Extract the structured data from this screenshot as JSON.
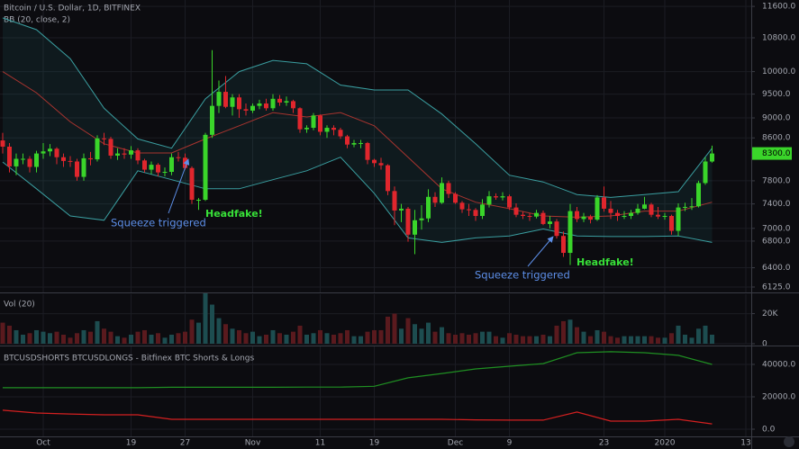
{
  "chart_data": [
    {
      "type": "candlestick",
      "title": "Bitcoin / U.S. Dollar, 1D, BITFINEX",
      "subtitle": "BB (20, close, 2)",
      "log_scale": true,
      "up_color": "#3ad52a",
      "down_color": "#e0262d",
      "xlim": [
        -0.4,
        110.8
      ],
      "ylim": [
        6050,
        11770
      ],
      "yticks": [
        {
          "value": 6125,
          "label": "6125.0"
        },
        {
          "value": 6400,
          "label": "6400.0"
        },
        {
          "value": 6800,
          "label": "6800.0"
        },
        {
          "value": 7000,
          "label": "7000.0"
        },
        {
          "value": 7400,
          "label": "7400.0"
        },
        {
          "value": 7800,
          "label": "7800.0"
        },
        {
          "value": 8600,
          "label": "8600.0"
        },
        {
          "value": 9000,
          "label": "9000.0"
        },
        {
          "value": 9500,
          "label": "9500.0"
        },
        {
          "value": 10000,
          "label": "10000.0"
        },
        {
          "value": 10800,
          "label": "10800.0"
        },
        {
          "value": 11600,
          "label": "11600.0"
        }
      ],
      "x": [
        0,
        1,
        2,
        3,
        4,
        5,
        6,
        7,
        8,
        9,
        10,
        11,
        12,
        13,
        14,
        15,
        16,
        17,
        18,
        19,
        20,
        21,
        22,
        23,
        24,
        25,
        26,
        27,
        28,
        29,
        30,
        31,
        32,
        33,
        34,
        35,
        36,
        37,
        38,
        39,
        40,
        41,
        42,
        43,
        44,
        45,
        46,
        47,
        48,
        49,
        50,
        51,
        52,
        53,
        54,
        55,
        56,
        57,
        58,
        59,
        60,
        61,
        62,
        63,
        64,
        65,
        66,
        67,
        68,
        69,
        70,
        71,
        72,
        73,
        74,
        75,
        76,
        77,
        78,
        79,
        80,
        81,
        82,
        83,
        84,
        85,
        86,
        87,
        88,
        89,
        90,
        91,
        92,
        93,
        94,
        95,
        96,
        97,
        98,
        99,
        100,
        101,
        102,
        103,
        104,
        105
      ],
      "open": [
        8550,
        8430,
        8060,
        8200,
        8200,
        8050,
        8300,
        8340,
        8390,
        8230,
        8160,
        8150,
        7870,
        8210,
        8190,
        8590,
        8580,
        8260,
        8300,
        8280,
        8360,
        8170,
        8000,
        8090,
        7950,
        7960,
        8230,
        8220,
        8030,
        7470,
        7470,
        8660,
        9250,
        9550,
        9230,
        9430,
        9180,
        9150,
        9250,
        9300,
        9200,
        9400,
        9320,
        9350,
        9200,
        8770,
        8800,
        9050,
        8720,
        8800,
        8760,
        8630,
        8470,
        8500,
        8500,
        8180,
        8120,
        8080,
        7620,
        7290,
        7320,
        6900,
        7130,
        7160,
        7520,
        7420,
        7760,
        7570,
        7420,
        7310,
        7300,
        7200,
        7390,
        7530,
        7510,
        7530,
        7340,
        7220,
        7200,
        7190,
        7250,
        7070,
        7110,
        6880,
        6620,
        7280,
        7150,
        7190,
        7140,
        7510,
        7320,
        7250,
        7200,
        7200,
        7250,
        7320,
        7390,
        7220,
        7190,
        7200,
        6960,
        7340,
        7350,
        7360,
        7760,
        8150
      ],
      "high": [
        8700,
        8500,
        8300,
        8300,
        8250,
        8350,
        8500,
        8480,
        8420,
        8300,
        8250,
        8200,
        8300,
        8330,
        8650,
        8700,
        8620,
        8400,
        8400,
        8440,
        8400,
        8200,
        8150,
        8120,
        8040,
        8300,
        8330,
        8300,
        8060,
        7500,
        8700,
        10500,
        9800,
        9900,
        9500,
        9500,
        9300,
        9300,
        9380,
        9400,
        9500,
        9480,
        9450,
        9380,
        9220,
        8850,
        9100,
        9070,
        8850,
        8850,
        8800,
        8660,
        8560,
        8560,
        8520,
        8200,
        8220,
        8100,
        7700,
        7400,
        7350,
        7300,
        7380,
        7650,
        7600,
        7860,
        7800,
        7600,
        7450,
        7400,
        7330,
        7480,
        7620,
        7580,
        7600,
        7560,
        7410,
        7270,
        7250,
        7300,
        7290,
        7200,
        7150,
        6950,
        7400,
        7350,
        7250,
        7220,
        7550,
        7700,
        7450,
        7300,
        7280,
        7300,
        7400,
        7520,
        7420,
        7350,
        7250,
        7220,
        7410,
        7420,
        7500,
        7800,
        8230,
        8450
      ],
      "low": [
        8300,
        7950,
        7900,
        8100,
        7950,
        7950,
        8200,
        8250,
        8100,
        8050,
        8050,
        7800,
        7800,
        8080,
        8150,
        8460,
        8200,
        8180,
        8200,
        8200,
        8100,
        7950,
        7920,
        7880,
        7880,
        7900,
        8150,
        8000,
        7400,
        7300,
        7450,
        8600,
        9100,
        9200,
        9050,
        9000,
        9050,
        9100,
        9180,
        9150,
        9150,
        9250,
        9250,
        9100,
        8700,
        8700,
        8750,
        8650,
        8600,
        8650,
        8580,
        8400,
        8420,
        8400,
        8100,
        8050,
        8000,
        7550,
        7050,
        7100,
        6790,
        6600,
        6980,
        7100,
        7350,
        7400,
        7500,
        7400,
        7250,
        7200,
        7120,
        7150,
        7340,
        7470,
        7460,
        7300,
        7180,
        7150,
        7120,
        7160,
        7050,
        7000,
        6840,
        6560,
        6440,
        7100,
        7100,
        7080,
        7120,
        7270,
        7150,
        7120,
        7150,
        7150,
        7220,
        7310,
        7180,
        7150,
        7140,
        6900,
        6880,
        7280,
        7300,
        7340,
        7730,
        8130
      ],
      "close": [
        8430,
        8060,
        8200,
        8200,
        8050,
        8300,
        8340,
        8390,
        8230,
        8160,
        8150,
        7870,
        8210,
        8190,
        8590,
        8580,
        8260,
        8300,
        8280,
        8360,
        8170,
        8000,
        8090,
        7950,
        7960,
        8230,
        8220,
        8030,
        7470,
        7470,
        8660,
        9250,
        9550,
        9230,
        9430,
        9180,
        9150,
        9250,
        9300,
        9200,
        9400,
        9320,
        9350,
        9200,
        8770,
        8800,
        9050,
        8720,
        8800,
        8760,
        8630,
        8470,
        8500,
        8500,
        8180,
        8120,
        8080,
        7620,
        7290,
        7320,
        6900,
        7130,
        7160,
        7520,
        7420,
        7760,
        7570,
        7420,
        7310,
        7300,
        7200,
        7390,
        7530,
        7510,
        7530,
        7340,
        7220,
        7200,
        7190,
        7250,
        7070,
        7110,
        6880,
        6620,
        7280,
        7150,
        7190,
        7140,
        7510,
        7320,
        7250,
        7200,
        7200,
        7250,
        7320,
        7390,
        7220,
        7190,
        7200,
        6960,
        7340,
        7350,
        7360,
        7760,
        8150,
        8300
      ],
      "bands": [
        {
          "color": "#3a9ea0",
          "x": [
            0,
            5,
            10,
            15,
            20,
            25,
            30,
            35,
            40,
            45,
            50,
            55,
            60,
            65,
            70,
            75,
            80,
            85,
            90,
            95,
            100,
            105
          ],
          "values": [
            11300,
            11000,
            10300,
            9200,
            8580,
            8400,
            9400,
            10000,
            10260,
            10180,
            9700,
            9590,
            9590,
            9080,
            8485,
            7900,
            7780,
            7560,
            7510,
            7560,
            7610,
            8400
          ]
        },
        {
          "color": "#a8342f",
          "x": [
            0,
            5,
            10,
            15,
            20,
            25,
            30,
            35,
            40,
            45,
            50,
            55,
            60,
            65,
            70,
            75,
            80,
            85,
            90,
            95,
            100,
            105
          ],
          "values": [
            10000,
            9530,
            8920,
            8485,
            8310,
            8310,
            8580,
            8840,
            9110,
            9020,
            9110,
            8840,
            8230,
            7660,
            7430,
            7320,
            7200,
            7180,
            7200,
            7280,
            7280,
            7430
          ]
        },
        {
          "color": "#3a9ea0",
          "x": [
            0,
            5,
            10,
            15,
            20,
            25,
            30,
            35,
            40,
            45,
            50,
            55,
            60,
            65,
            70,
            75,
            80,
            85,
            90,
            95,
            100,
            105
          ],
          "values": [
            8140,
            7660,
            7200,
            7130,
            7980,
            7820,
            7660,
            7660,
            7820,
            7980,
            8230,
            7580,
            6850,
            6780,
            6850,
            6880,
            6990,
            6880,
            6870,
            6870,
            6880,
            6780
          ]
        }
      ],
      "last_price": {
        "value": 8300,
        "label": "8300.0"
      },
      "annotations": [
        "Squeeze triggered",
        "Headfake!",
        "Squeeze triggered",
        "Headfake!"
      ]
    },
    {
      "type": "bar",
      "title": "Vol (20)",
      "up_color": "#1d4d50",
      "down_color": "#5a1a1e",
      "xlim": [
        -0.4,
        110.8
      ],
      "ylim": [
        0,
        32900
      ],
      "yticks": [
        0,
        {
          "value": 20000,
          "label": "20K"
        }
      ],
      "x": [
        0,
        1,
        2,
        3,
        4,
        5,
        6,
        7,
        8,
        9,
        10,
        11,
        12,
        13,
        14,
        15,
        16,
        17,
        18,
        19,
        20,
        21,
        22,
        23,
        24,
        25,
        26,
        27,
        28,
        29,
        30,
        31,
        32,
        33,
        34,
        35,
        36,
        37,
        38,
        39,
        40,
        41,
        42,
        43,
        44,
        45,
        46,
        47,
        48,
        49,
        50,
        51,
        52,
        53,
        54,
        55,
        56,
        57,
        58,
        59,
        60,
        61,
        62,
        63,
        64,
        65,
        66,
        67,
        68,
        69,
        70,
        71,
        72,
        73,
        74,
        75,
        76,
        77,
        78,
        79,
        80,
        81,
        82,
        83,
        84,
        85,
        86,
        87,
        88,
        89,
        90,
        91,
        92,
        93,
        94,
        95,
        96,
        97,
        98,
        99,
        100,
        101,
        102,
        103,
        104,
        105
      ],
      "values": [
        14000,
        12000,
        9000,
        6000,
        7000,
        9000,
        8000,
        7000,
        8000,
        6000,
        4000,
        7000,
        9000,
        8000,
        15000,
        10000,
        8000,
        5000,
        4000,
        6000,
        8000,
        9000,
        6000,
        7000,
        4000,
        6000,
        7000,
        8000,
        16000,
        14000,
        34000,
        26000,
        17000,
        13000,
        10000,
        9000,
        7000,
        8000,
        5000,
        6000,
        9000,
        7000,
        6000,
        8000,
        12000,
        6000,
        7000,
        9000,
        7000,
        6000,
        7000,
        9000,
        5000,
        5000,
        8000,
        9000,
        9000,
        18000,
        20000,
        10000,
        17000,
        13000,
        10000,
        14000,
        8000,
        11000,
        7000,
        6000,
        7000,
        6000,
        7000,
        8000,
        8000,
        5000,
        4000,
        7000,
        6000,
        5000,
        5000,
        5000,
        6000,
        5000,
        12000,
        15000,
        16000,
        11000,
        8000,
        5000,
        9000,
        8000,
        5000,
        4000,
        5000,
        5000,
        5000,
        5000,
        5000,
        4000,
        4000,
        7000,
        12000,
        6000,
        4000,
        10000,
        12000,
        6000
      ]
    },
    {
      "type": "line",
      "title": "BTCUSDSHORTS BTCUSDLONGS - Bitfinex BTC Shorts & Longs",
      "xlim": [
        -0.4,
        110.8
      ],
      "ylim": [
        -4440,
        51100
      ],
      "yticks": [
        {
          "value": 0,
          "label": "0.0"
        },
        {
          "value": 20000,
          "label": "20000.0"
        },
        {
          "value": 40000,
          "label": "40000.0"
        }
      ],
      "xticks": [
        {
          "value": 6,
          "label": "Oct"
        },
        19,
        27,
        {
          "value": 37,
          "label": "Nov"
        },
        {
          "value": 47,
          "label": "11"
        },
        {
          "value": 55,
          "label": "19"
        },
        {
          "value": 67,
          "label": "Dec"
        },
        {
          "value": 75,
          "label": "9"
        },
        {
          "value": 89,
          "label": "23"
        },
        {
          "value": 98,
          "label": "2020"
        },
        {
          "value": 110,
          "label": "13"
        }
      ],
      "x": [
        0,
        5,
        10,
        15,
        20,
        25,
        30,
        35,
        40,
        45,
        50,
        55,
        60,
        65,
        70,
        75,
        80,
        85,
        90,
        95,
        100,
        105
      ],
      "series": [
        {
          "color": "#1f8f22",
          "values": [
            25600,
            25600,
            25600,
            25600,
            25600,
            25900,
            25900,
            25900,
            25900,
            26000,
            26000,
            26500,
            31700,
            34400,
            37200,
            38900,
            40500,
            47200,
            47800,
            47200,
            45600,
            40000
          ]
        },
        {
          "color": "#d42020",
          "values": [
            11700,
            10000,
            9400,
            8900,
            8900,
            6100,
            6100,
            6100,
            6100,
            6100,
            6100,
            6100,
            6100,
            6100,
            5800,
            5600,
            5600,
            10600,
            5000,
            5000,
            6100,
            3300
          ]
        }
      ]
    }
  ]
}
